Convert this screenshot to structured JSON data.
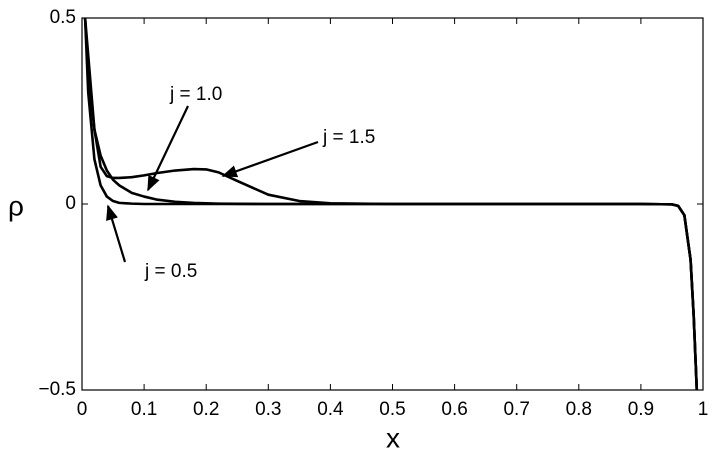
{
  "chart_data": {
    "type": "line",
    "x_label": "x",
    "y_label": "ρ",
    "x": [
      0.005,
      0.01,
      0.02,
      0.03,
      0.04,
      0.05,
      0.06,
      0.08,
      0.1,
      0.12,
      0.15,
      0.18,
      0.2,
      0.22,
      0.25,
      0.3,
      0.35,
      0.4,
      0.5,
      0.6,
      0.7,
      0.8,
      0.9,
      0.95,
      0.96,
      0.97,
      0.98,
      0.985,
      0.99
    ],
    "series": [
      {
        "name": "j = 0.5",
        "color": "#000000",
        "values": [
          0.5,
          0.3,
          0.12,
          0.05,
          0.02,
          0.008,
          0.003,
          0.001,
          0,
          0,
          0,
          0,
          0,
          0,
          0,
          0,
          0,
          0,
          0,
          0,
          0,
          0,
          0,
          -0.001,
          -0.005,
          -0.03,
          -0.15,
          -0.3,
          -0.5
        ]
      },
      {
        "name": "j = 1.0",
        "color": "#000000",
        "values": [
          0.5,
          0.35,
          0.2,
          0.13,
          0.09,
          0.065,
          0.05,
          0.03,
          0.02,
          0.012,
          0.006,
          0.003,
          0.002,
          0.001,
          0.0005,
          0,
          0,
          0,
          0,
          0,
          0,
          0,
          0,
          -0.001,
          -0.005,
          -0.03,
          -0.15,
          -0.3,
          -0.5
        ]
      },
      {
        "name": "j = 1.5",
        "color": "#000000",
        "values": [
          0.5,
          0.4,
          0.2,
          0.1,
          0.075,
          0.07,
          0.07,
          0.072,
          0.077,
          0.083,
          0.09,
          0.094,
          0.093,
          0.085,
          0.062,
          0.025,
          0.008,
          0.002,
          0,
          0,
          0,
          0,
          0,
          -0.001,
          -0.005,
          -0.03,
          -0.15,
          -0.3,
          -0.5
        ]
      }
    ],
    "xlim": [
      0,
      1
    ],
    "ylim": [
      -0.5,
      0.5
    ],
    "xticks": [
      0,
      0.1,
      0.2,
      0.3,
      0.4,
      0.5,
      0.6,
      0.7,
      0.8,
      0.9,
      1
    ],
    "yticks": [
      {
        "value": -0.5,
        "label": "−0.5"
      },
      0,
      0.5
    ],
    "grid": false
  }
}
